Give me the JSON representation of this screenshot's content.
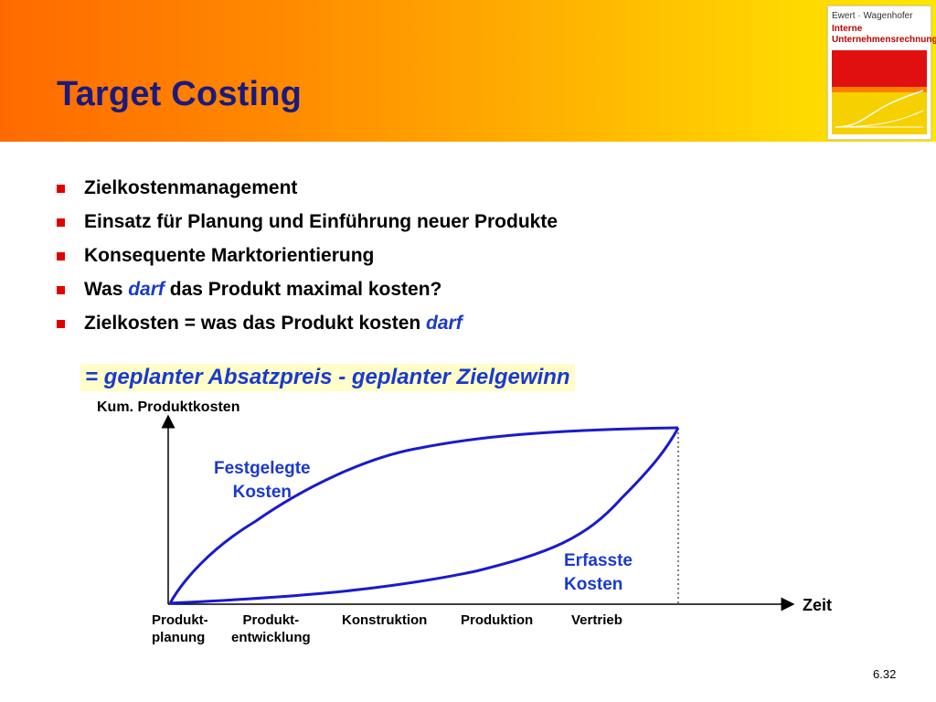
{
  "header": {
    "title": "Target Costing",
    "book": {
      "authors": "Ewert · Wagenhofer",
      "title_line1": "Interne",
      "title_line2": "Unternehmensrechnung"
    }
  },
  "bullets": [
    {
      "text": "Zielkostenmanagement"
    },
    {
      "text": "Einsatz für Planung und Einführung neuer Produkte"
    },
    {
      "text": "Konsequente Marktorientierung"
    },
    {
      "pre": "Was ",
      "em": "darf",
      "post": " das Produkt maximal kosten?"
    },
    {
      "pre": "Zielkosten = was das Produkt kosten ",
      "em": "darf",
      "post": ""
    }
  ],
  "formula": "= geplanter Absatzpreis - geplanter Zielgewinn",
  "diagram": {
    "y_axis_label": "Kum. Produktkosten",
    "x_axis_label": "Zeit",
    "curve_fixed": {
      "line1": "Festgelegte",
      "line2": "Kosten"
    },
    "curve_recorded": {
      "line1": "Erfasste",
      "line2": "Kosten"
    },
    "phases": [
      {
        "line1": "Produkt-",
        "line2": "planung"
      },
      {
        "line1": "Produkt-",
        "line2": "entwicklung"
      },
      {
        "line1": "Konstruktion",
        "line2": ""
      },
      {
        "line1": "Produktion",
        "line2": ""
      },
      {
        "line1": "Vertrieb",
        "line2": ""
      }
    ],
    "colors": {
      "curve": "#1a1acc",
      "axis": "#000000",
      "emphasis": "#1a3acc",
      "bullet": "#e00000"
    }
  },
  "footer": {
    "page_number": "6.32"
  }
}
